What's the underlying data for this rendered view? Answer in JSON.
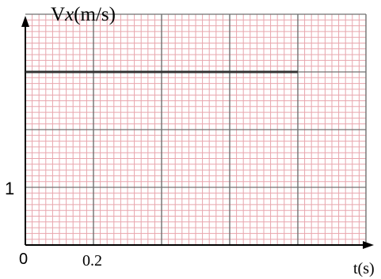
{
  "chart_data": {
    "type": "line",
    "title_prefix": "V",
    "title_var": "x",
    "title_unit": "(m/s)",
    "xlabel": "t(s)",
    "origin_label": "0",
    "x_tick_label": "0.2",
    "y_tick_label": "1",
    "x": [
      0,
      0.8
    ],
    "y": [
      3,
      3
    ],
    "xlim": [
      0,
      1
    ],
    "ylim": [
      0,
      4
    ],
    "y_label_value": 1,
    "x_label_value": 0.2,
    "grid": true,
    "colors": {
      "minor_grid": "#e8a6ad",
      "major_grid": "#707070",
      "series": "#333333",
      "axis": "#000000"
    }
  }
}
